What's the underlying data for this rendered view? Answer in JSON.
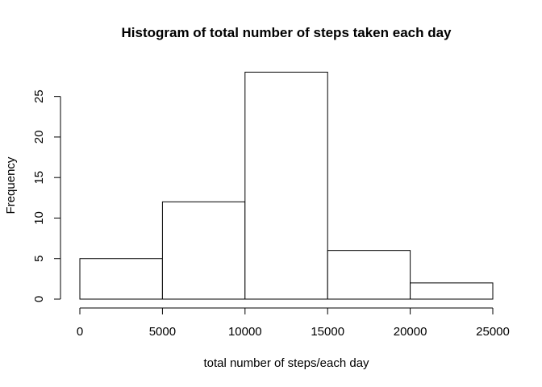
{
  "chart_data": {
    "type": "bar",
    "title": "Histogram of total number of steps taken each day",
    "xlabel": "total number of steps/each day",
    "ylabel": "Frequency",
    "bins": [
      {
        "from": 0,
        "to": 5000,
        "count": 5
      },
      {
        "from": 5000,
        "to": 10000,
        "count": 12
      },
      {
        "from": 10000,
        "to": 15000,
        "count": 28
      },
      {
        "from": 15000,
        "to": 20000,
        "count": 6
      },
      {
        "from": 20000,
        "to": 25000,
        "count": 2
      }
    ],
    "xlim": [
      0,
      25000
    ],
    "ylim": [
      0,
      28
    ],
    "x_ticks": [
      0,
      5000,
      10000,
      15000,
      20000,
      25000
    ],
    "y_ticks": [
      0,
      5,
      10,
      15,
      20,
      25
    ],
    "x_tick_labels": [
      "0",
      "5000",
      "10000",
      "15000",
      "20000",
      "25000"
    ],
    "y_tick_labels": [
      "0",
      "5",
      "10",
      "15",
      "20",
      "25"
    ],
    "grid": false,
    "bar_fill": "#ffffff",
    "bar_stroke": "#000000"
  }
}
